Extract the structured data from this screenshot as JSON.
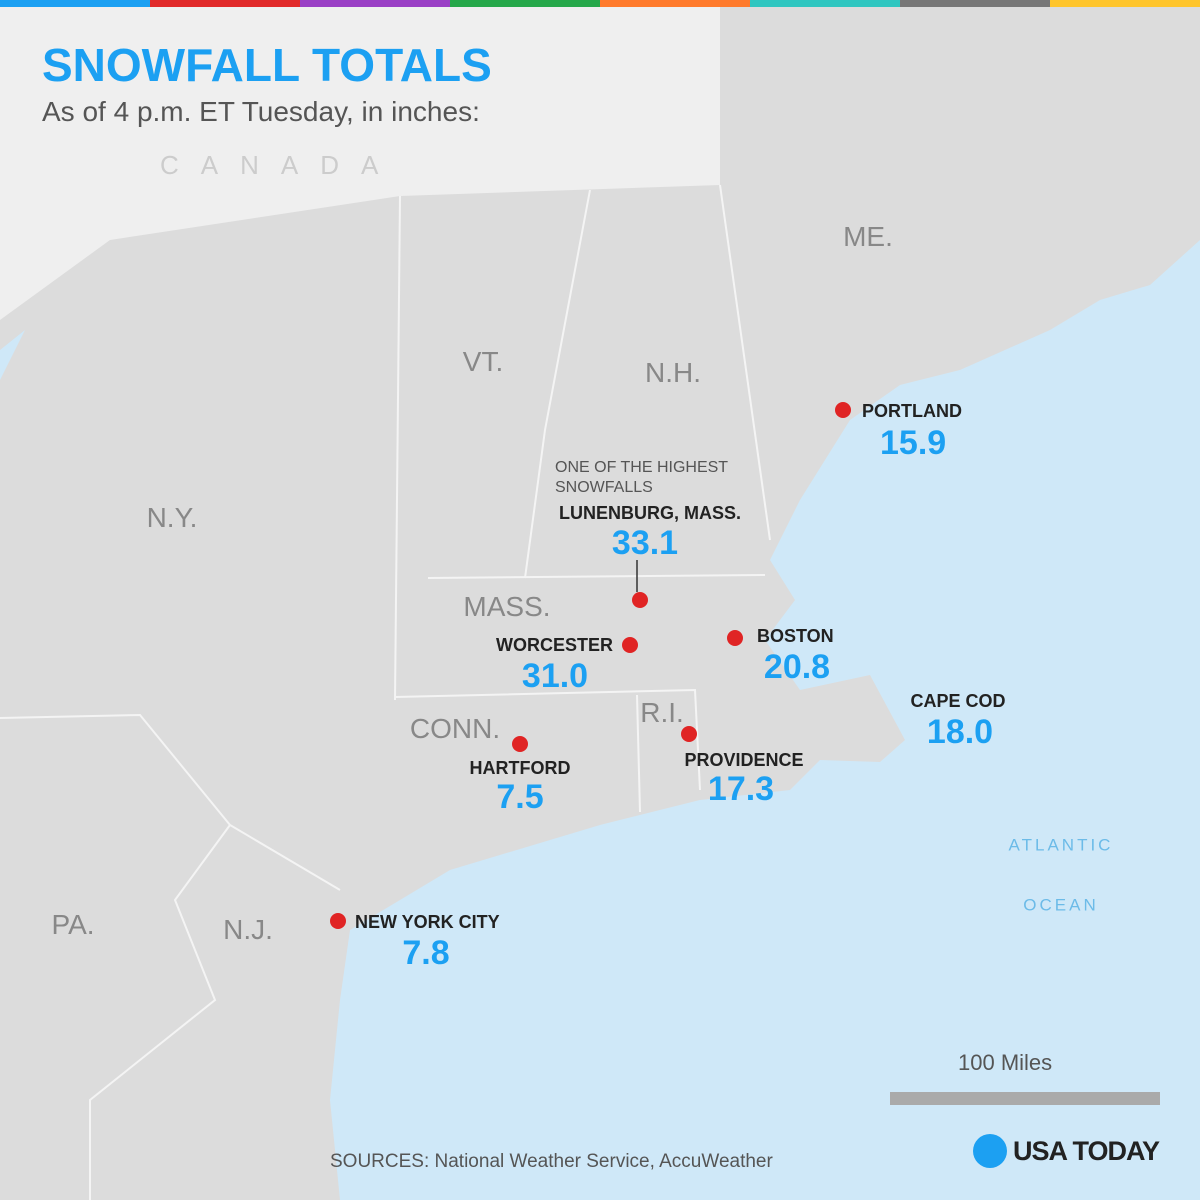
{
  "header": {
    "title": "SNOWFALL TOTALS",
    "subtitle": "As of 4 p.m. ET Tuesday, in inches:"
  },
  "regions": [
    "CANADA",
    "ME.",
    "VT.",
    "N.H.",
    "N.Y.",
    "MASS.",
    "CONN.",
    "R.I.",
    "PA.",
    "N.J.",
    "ATLANTIC",
    "OCEAN"
  ],
  "cities": [
    {
      "name": "PORTLAND",
      "value": "15.9"
    },
    {
      "note": "ONE OF THE HIGHEST SNOWFALLS",
      "name": "LUNENBURG, MASS.",
      "value": "33.1"
    },
    {
      "name": "WORCESTER",
      "value": "31.0"
    },
    {
      "name": "BOSTON",
      "value": "20.8"
    },
    {
      "name": "CAPE COD",
      "value": "18.0"
    },
    {
      "name": "HARTFORD",
      "value": "7.5"
    },
    {
      "name": "PROVIDENCE",
      "value": "17.3"
    },
    {
      "name": "NEW YORK CITY",
      "value": "7.8"
    }
  ],
  "scale": "100 Miles",
  "sources": "SOURCES: National Weather Service, AccuWeather",
  "logo": "USA TODAY"
}
